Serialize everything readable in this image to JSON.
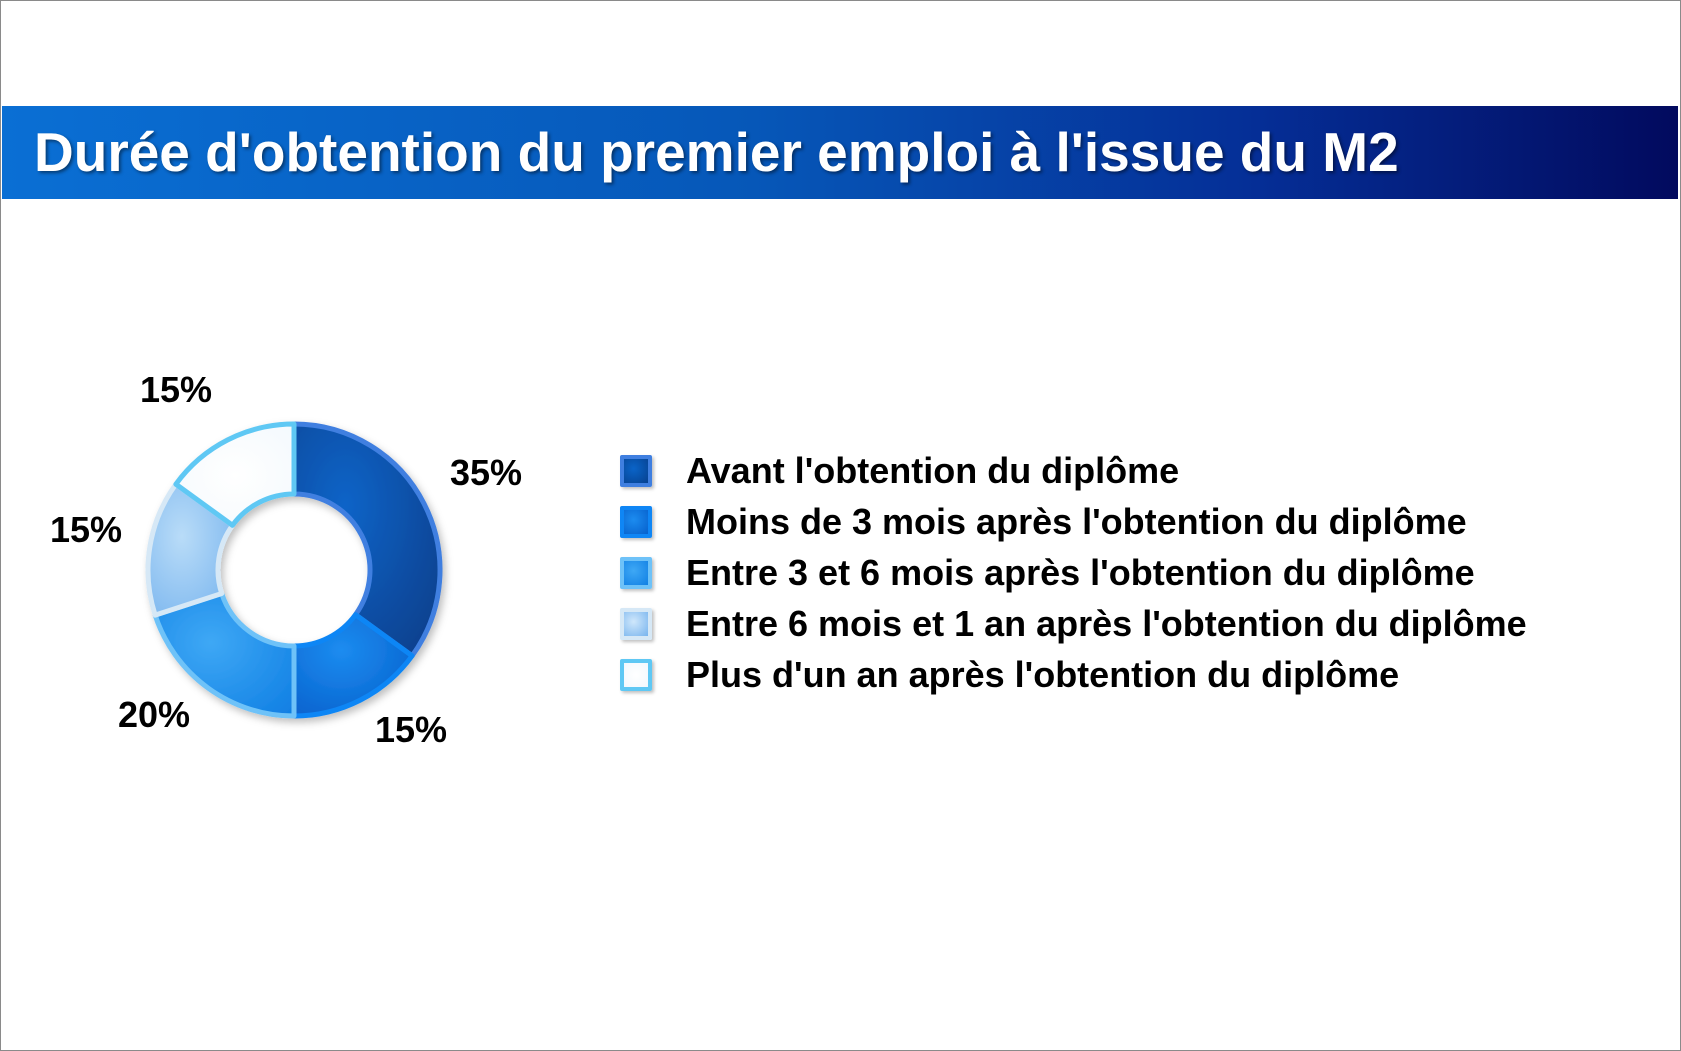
{
  "chart_data": {
    "type": "donut",
    "title": "Durée d'obtention du premier emploi à l'issue du M2",
    "categories": [
      "Avant l'obtention du diplôme",
      "Moins de 3 mois après l'obtention du diplôme",
      "Entre 3 et 6 mois après l'obtention du diplôme",
      "Entre 6 mois et 1 an après l'obtention du diplôme",
      "Plus d'un an après l'obtention du diplôme"
    ],
    "values": [
      35,
      15,
      20,
      15,
      15
    ],
    "value_labels": [
      "35%",
      "15%",
      "20%",
      "15%",
      "15%"
    ],
    "unit": "%",
    "legend_position": "right",
    "colors": [
      "#0a4fa6",
      "#0a73e0",
      "#1e90f0",
      "#8fc4f2",
      "#ffffff"
    ],
    "edge_colors": [
      "#3f7fe0",
      "#0f86f5",
      "#6ec2f8",
      "#d6e8f6",
      "#5fc8f4"
    ]
  }
}
